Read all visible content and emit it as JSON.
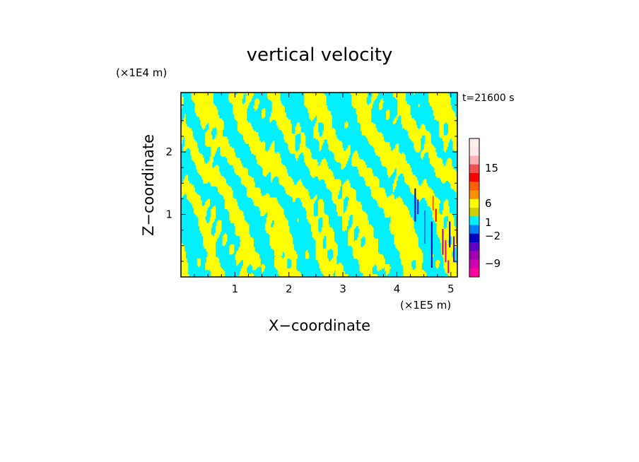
{
  "chart_data": {
    "type": "heatmap",
    "title": "vertical velocity",
    "time_label": "t=21600 s",
    "xlabel": "X−coordinate",
    "ylabel": "Z−coordinate",
    "x_unit": "(×1E5 m)",
    "y_unit": "(×1E4 m)",
    "xlim": [
      0,
      5.12
    ],
    "ylim": [
      0,
      2.95
    ],
    "x_ticks": [
      "1",
      "2",
      "3",
      "4",
      "5"
    ],
    "x_tick_values": [
      1,
      2,
      3,
      4,
      5
    ],
    "y_ticks": [
      "1",
      "2"
    ],
    "y_tick_values": [
      1,
      2
    ],
    "dominant_colors": [
      "#00f0ff",
      "#ffff00"
    ],
    "colorbar": {
      "labels": [
        "15",
        "6",
        "1",
        "−2",
        "−9"
      ],
      "label_values": [
        15,
        6,
        1,
        -2,
        -9
      ],
      "colors_top_to_bottom": [
        "#ffefef",
        "#ffe8e8",
        "#ffb0b0",
        "#f05050",
        "#ff0000",
        "#ff6000",
        "#ff9000",
        "#ffff00",
        "#d0d000",
        "#00f0ff",
        "#0080ff",
        "#0000c0",
        "#6000c0",
        "#a000b0",
        "#d000b0",
        "#ff00a0"
      ]
    }
  }
}
